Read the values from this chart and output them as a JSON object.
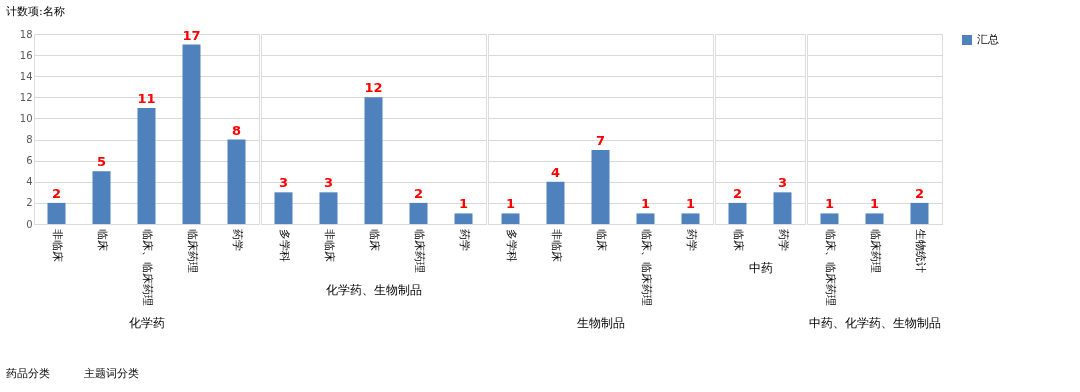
{
  "chart_data": [
    {
      "type": "bar",
      "xlabel": "化学药",
      "categories": [
        "非临床",
        "临床",
        "临床、临床药理",
        "临床药理",
        "药学"
      ],
      "values": [
        2,
        5,
        11,
        17,
        8
      ],
      "color": "#4f81bd",
      "ylim": [
        0,
        18
      ],
      "yticks": [
        0,
        2,
        4,
        6,
        8,
        10,
        12,
        14,
        16,
        18
      ],
      "grid": "y",
      "data_labels": true,
      "annotations": [
        "计数项:名称",
        "药品分类",
        "主题词分类"
      ]
    },
    {
      "type": "bar",
      "xlabel": "化学药、生物制品",
      "categories": [
        "多学科",
        "非临床",
        "临床",
        "临床药理",
        "药学"
      ],
      "values": [
        3,
        3,
        12,
        2,
        1
      ],
      "color": "#4f81bd",
      "ylim": [
        0,
        18
      ],
      "yticks": [
        0,
        2,
        4,
        6,
        8,
        10,
        12,
        14,
        16,
        18
      ],
      "grid": "y",
      "data_labels": true,
      "tick_labels": "x"
    },
    {
      "type": "bar",
      "xlabel": "生物制品",
      "categories": [
        "多学科",
        "非临床",
        "临床",
        "临床、临床药理",
        "药学"
      ],
      "values": [
        1,
        4,
        7,
        1,
        1
      ],
      "color": "#4f81bd",
      "ylim": [
        0,
        18
      ],
      "yticks": [
        0,
        2,
        4,
        6,
        8,
        10,
        12,
        14,
        16,
        18
      ],
      "grid": "y",
      "data_labels": true,
      "tick_labels": "x"
    },
    {
      "type": "bar",
      "xlabel": "中药",
      "categories": [
        "临床",
        "药学"
      ],
      "values": [
        2,
        3
      ],
      "color": "#4f81bd",
      "ylim": [
        0,
        18
      ],
      "yticks": [
        0,
        2,
        4,
        6,
        8,
        10,
        12,
        14,
        16,
        18
      ],
      "grid": "y",
      "data_labels": true,
      "tick_labels": "x"
    },
    {
      "type": "bar",
      "xlabel": "中药、化学药、生物制品",
      "categories": [
        "临床、临床药理",
        "临床药理",
        "生物统计"
      ],
      "series": [
        {
          "name": "汇总",
          "color": "#4f81bd",
          "values": [
            1,
            1,
            2
          ]
        }
      ],
      "ylim": [
        0,
        18
      ],
      "yticks": [
        0,
        2,
        4,
        6,
        8,
        10,
        12,
        14,
        16,
        18
      ],
      "grid": "y",
      "data_labels": true,
      "tick_labels": "x",
      "legend": "right"
    }
  ]
}
